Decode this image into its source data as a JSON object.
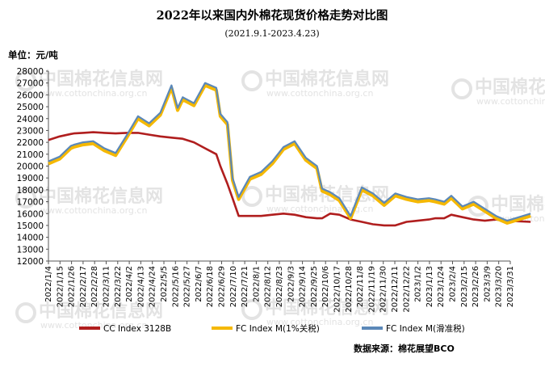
{
  "chart_data": {
    "type": "line",
    "title": "2022年以来国内外棉花现货价格走势对比图",
    "subtitle": "(2021.9.1-2023.4.23)",
    "ylabel": "单位：元/吨",
    "ylim": [
      12000,
      28000
    ],
    "ytick_step": 1000,
    "source": "数据来源：棉花展望BCO",
    "watermark": "中国棉花信息网",
    "watermark_url": "www.cottonchina.org.cn",
    "x_tick_labels": [
      "2022/1/4",
      "2022/1/15",
      "2022/1/26",
      "2022/2/17",
      "2022/2/28",
      "2022/3/11",
      "2022/3/22",
      "2022/4/2",
      "2022/4/13",
      "2022/4/24",
      "2022/5/5",
      "2022/5/16",
      "2022/5/27",
      "2022/6/7",
      "2022/6/18",
      "2022/6/29",
      "2022/7/10",
      "2022/7/21",
      "2022/8/1",
      "2022/8/12",
      "2022/8/23",
      "2022/9/3",
      "2022/9/14",
      "2022/9/25",
      "2022/10/6",
      "2022/10/17",
      "2022/10/28",
      "2022/11/8",
      "2022/11/19",
      "2022/11/30",
      "2022/12/11",
      "2022/12/22",
      "2023/1/2",
      "2023/1/13",
      "2023/1/24",
      "2023/2/4",
      "2023/2/15",
      "2023/2/26",
      "2023/3/9",
      "2023/3/20",
      "2023/3/31"
    ],
    "legend_position": "bottom",
    "grid": false,
    "series": [
      {
        "name": "CC Index 3128B",
        "color": "#b01e1e",
        "x": [
          "2022/1/4",
          "2022/1/15",
          "2022/1/26",
          "2022/1/29",
          "2022/2/7",
          "2022/2/17",
          "2022/2/28",
          "2022/3/11",
          "2022/3/22",
          "2022/4/2",
          "2022/4/13",
          "2022/4/24",
          "2022/5/5",
          "2022/5/16",
          "2022/5/27",
          "2022/6/7",
          "2022/6/18",
          "2022/6/22",
          "2022/6/29",
          "2022/7/4",
          "2022/7/10",
          "2022/7/21",
          "2022/8/1",
          "2022/8/12",
          "2022/8/23",
          "2022/9/3",
          "2022/9/14",
          "2022/9/25",
          "2022/9/30",
          "2022/10/8",
          "2022/10/17",
          "2022/10/28",
          "2022/11/8",
          "2022/11/19",
          "2022/11/30",
          "2022/12/11",
          "2022/12/22",
          "2023/1/2",
          "2023/1/13",
          "2023/1/19",
          "2023/1/28",
          "2023/2/4",
          "2023/2/15",
          "2023/2/26",
          "2023/3/9",
          "2023/3/20",
          "2023/3/31",
          "2023/4/23"
        ],
        "values": [
          22200,
          22500,
          22700,
          22750,
          22800,
          22850,
          22800,
          22750,
          22800,
          22800,
          22650,
          22500,
          22400,
          22300,
          22000,
          21500,
          21000,
          20000,
          18500,
          17300,
          15800,
          15800,
          15800,
          15900,
          16000,
          15900,
          15700,
          15600,
          15600,
          16000,
          15900,
          15500,
          15300,
          15100,
          15000,
          15000,
          15300,
          15400,
          15500,
          15600,
          15600,
          15900,
          15700,
          15500,
          15400,
          15500,
          15400,
          15300
        ]
      },
      {
        "name": "FC Index M(1%关税)",
        "color": "#f5b800",
        "x": [
          "2022/1/4",
          "2022/1/15",
          "2022/1/26",
          "2022/1/29",
          "2022/2/7",
          "2022/2/17",
          "2022/2/28",
          "2022/3/11",
          "2022/3/22",
          "2022/4/2",
          "2022/4/13",
          "2022/4/24",
          "2022/5/5",
          "2022/5/11",
          "2022/5/16",
          "2022/5/27",
          "2022/6/7",
          "2022/6/18",
          "2022/6/22",
          "2022/6/29",
          "2022/7/4",
          "2022/7/10",
          "2022/7/21",
          "2022/8/1",
          "2022/8/12",
          "2022/8/23",
          "2022/9/3",
          "2022/9/14",
          "2022/9/25",
          "2022/9/30",
          "2022/10/8",
          "2022/10/17",
          "2022/10/28",
          "2022/11/8",
          "2022/11/19",
          "2022/11/30",
          "2022/12/11",
          "2022/12/22",
          "2023/1/2",
          "2023/1/13",
          "2023/1/19",
          "2023/1/28",
          "2023/2/4",
          "2023/2/15",
          "2023/2/26",
          "2023/3/9",
          "2023/3/20",
          "2023/3/31",
          "2023/4/23"
        ],
        "values": [
          20200,
          20600,
          21500,
          21600,
          21800,
          21900,
          21300,
          20900,
          22400,
          24000,
          23400,
          24300,
          26600,
          24700,
          25600,
          25100,
          26800,
          26400,
          24200,
          23500,
          18800,
          17200,
          18900,
          19300,
          20200,
          21400,
          21900,
          20500,
          19800,
          17900,
          17600,
          17100,
          15600,
          18000,
          17500,
          16700,
          17500,
          17200,
          17000,
          17100,
          17000,
          16800,
          17300,
          16400,
          16800,
          16200,
          15600,
          15200,
          15800
        ]
      },
      {
        "name": "FC Index M(滑准税)",
        "color": "#5b88b8",
        "x": [
          "2022/1/4",
          "2022/1/15",
          "2022/1/26",
          "2022/1/29",
          "2022/2/7",
          "2022/2/17",
          "2022/2/28",
          "2022/3/11",
          "2022/3/22",
          "2022/4/2",
          "2022/4/13",
          "2022/4/24",
          "2022/5/5",
          "2022/5/11",
          "2022/5/16",
          "2022/5/27",
          "2022/6/7",
          "2022/6/18",
          "2022/6/22",
          "2022/6/29",
          "2022/7/4",
          "2022/7/10",
          "2022/7/21",
          "2022/8/1",
          "2022/8/12",
          "2022/8/23",
          "2022/9/3",
          "2022/9/14",
          "2022/9/25",
          "2022/9/30",
          "2022/10/8",
          "2022/10/17",
          "2022/10/28",
          "2022/11/8",
          "2022/11/19",
          "2022/11/30",
          "2022/12/11",
          "2022/12/22",
          "2023/1/2",
          "2023/1/13",
          "2023/1/19",
          "2023/1/28",
          "2023/2/4",
          "2023/2/15",
          "2023/2/26",
          "2023/3/9",
          "2023/3/20",
          "2023/3/31",
          "2023/4/23"
        ],
        "values": [
          20400,
          20800,
          21700,
          21800,
          22000,
          22100,
          21500,
          21100,
          22600,
          24200,
          23600,
          24500,
          26800,
          24900,
          25800,
          25300,
          27000,
          26600,
          24400,
          23700,
          19000,
          17400,
          19100,
          19500,
          20400,
          21600,
          22100,
          20700,
          20000,
          18100,
          17800,
          17300,
          15800,
          18200,
          17700,
          16900,
          17700,
          17400,
          17200,
          17300,
          17200,
          17000,
          17500,
          16600,
          17000,
          16400,
          15800,
          15400,
          16000
        ]
      }
    ]
  }
}
